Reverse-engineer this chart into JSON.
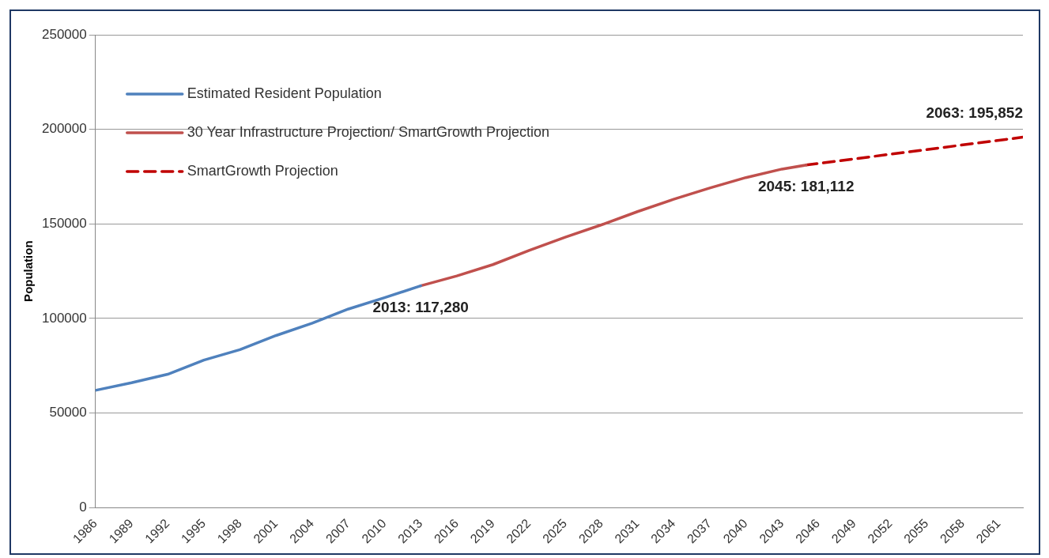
{
  "chart_data": {
    "type": "line",
    "ylabel": "Population",
    "xlim": [
      1986,
      2063
    ],
    "xticks": [
      1986,
      1989,
      1992,
      1995,
      1998,
      2001,
      2004,
      2007,
      2010,
      2013,
      2016,
      2019,
      2022,
      2025,
      2028,
      2031,
      2034,
      2037,
      2040,
      2043,
      2046,
      2049,
      2052,
      2055,
      2058,
      2061
    ],
    "ylim": [
      0,
      250000
    ],
    "yticks": [
      0,
      50000,
      100000,
      150000,
      200000,
      250000
    ],
    "grid": "y",
    "legend": "top left",
    "marker": "none",
    "series": [
      {
        "name": "Estimated Resident Population",
        "color": "#4f81bd",
        "line_style": "solid",
        "x": [
          1986,
          1989,
          1992,
          1995,
          1998,
          2001,
          2004,
          2007,
          2010,
          2013
        ],
        "values": [
          62000,
          66000,
          70500,
          78000,
          83500,
          91000,
          97500,
          105000,
          111000,
          117280
        ]
      },
      {
        "name": "30 Year Infrastructure Projection/ SmartGrowth Projection",
        "color": "#c0504d",
        "line_style": "solid",
        "x": [
          2013,
          2016,
          2019,
          2022,
          2025,
          2028,
          2031,
          2034,
          2037,
          2040,
          2043,
          2045
        ],
        "values": [
          117280,
          122500,
          128500,
          136000,
          143000,
          149500,
          156500,
          163000,
          169000,
          174500,
          179000,
          181112
        ]
      },
      {
        "name": "SmartGrowth Projection",
        "color": "#c00000",
        "line_style": "dashed",
        "x": [
          2045,
          2063
        ],
        "values": [
          181112,
          195852
        ]
      }
    ],
    "annotations": [
      {
        "text": "2013: 117,280",
        "x": 2013,
        "y": 117280
      },
      {
        "text": "2045: 181,112",
        "x": 2045,
        "y": 181112
      },
      {
        "text": "2063: 195,852",
        "x": 2063,
        "y": 195852
      }
    ]
  }
}
